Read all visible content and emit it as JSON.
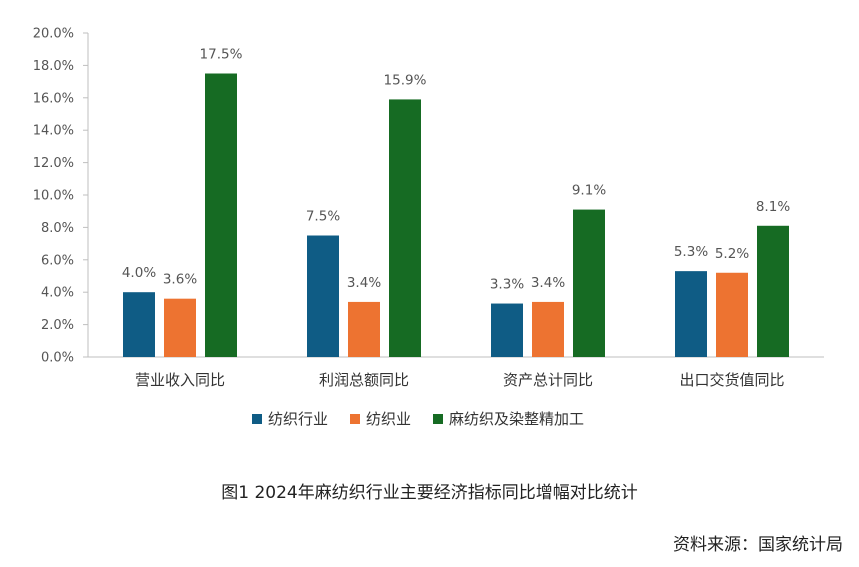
{
  "chart_data": {
    "type": "bar",
    "categories": [
      "营业收入同比",
      "利润总额同比",
      "资产总计同比",
      "出口交货值同比"
    ],
    "series": [
      {
        "name": "纺织行业",
        "color": "#0F5C85",
        "values": [
          4.0,
          7.5,
          3.3,
          5.3
        ]
      },
      {
        "name": "纺织业",
        "color": "#ED7331",
        "values": [
          3.6,
          3.4,
          3.4,
          5.2
        ]
      },
      {
        "name": "麻纺织及染整精加工",
        "color": "#166B23",
        "values": [
          17.5,
          15.9,
          9.1,
          8.1
        ]
      }
    ],
    "yticks": [
      "0.0%",
      "2.0%",
      "4.0%",
      "6.0%",
      "8.0%",
      "10.0%",
      "12.0%",
      "14.0%",
      "16.0%",
      "18.0%",
      "20.0%"
    ],
    "ylim": [
      0,
      20
    ],
    "value_suffix": "%",
    "legend_position": "bottom",
    "grid": false
  },
  "caption": "图1  2024年麻纺织行业主要经济指标同比增幅对比统计",
  "source": "资料来源：国家统计局"
}
